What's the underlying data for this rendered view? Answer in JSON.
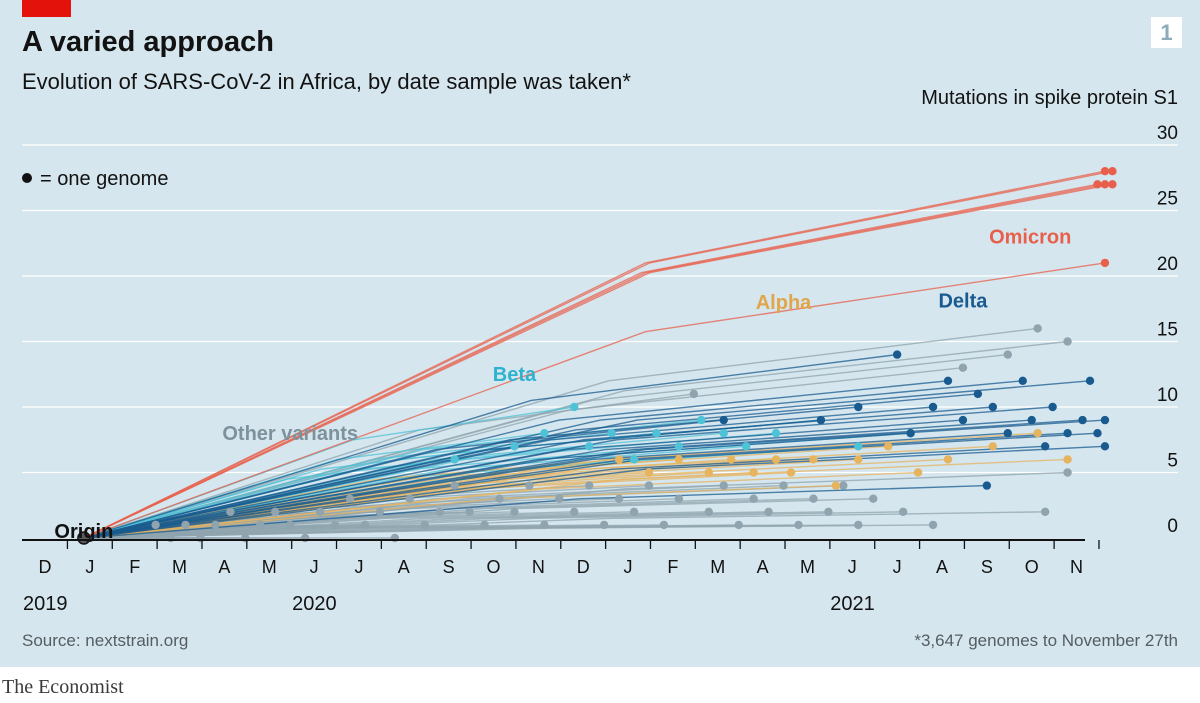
{
  "title": "A varied approach",
  "subtitle": "Evolution of SARS-CoV-2 in Africa, by date sample was taken*",
  "chart_number": "1",
  "legend_text": "= one genome",
  "source": "Source: nextstrain.org",
  "footnote": "*3,647 genomes to November 27th",
  "brand": "The Economist",
  "colors": {
    "other": "#8fa4ae",
    "beta": "#4ec2d7",
    "alpha": "#e6b35f",
    "delta": "#1a5b8f",
    "omicron": "#e8604c",
    "grid": "#ffffff",
    "axis": "#121212"
  },
  "chart_data": {
    "type": "scatter",
    "ylabel": "Mutations in spike protein S1",
    "ylim": [
      0,
      30
    ],
    "y_ticks": [
      "0",
      "5",
      "10",
      "15",
      "20",
      "25",
      "30"
    ],
    "x_range": [
      "2019-12",
      "2021-11"
    ],
    "x_month_ticks": [
      "D",
      "J",
      "F",
      "M",
      "A",
      "M",
      "J",
      "J",
      "A",
      "S",
      "O",
      "N",
      "D",
      "J",
      "F",
      "M",
      "A",
      "M",
      "J",
      "J",
      "A",
      "S",
      "O",
      "N"
    ],
    "x_year_labels": [
      {
        "label": "2019",
        "date": "2019-12"
      },
      {
        "label": "2020",
        "date": "2020-06"
      },
      {
        "label": "2021",
        "date": "2021-06"
      }
    ],
    "grid": true,
    "total_genomes": 3647,
    "annotations": [
      {
        "label": "Origin",
        "date": "2019-12-27",
        "y": 0
      },
      {
        "label": "Other variants",
        "date": "2020-05-15",
        "y": 7.5
      },
      {
        "label": "Beta",
        "date": "2020-10-15",
        "y": 12
      },
      {
        "label": "Alpha",
        "date": "2021-04-15",
        "y": 17.5
      },
      {
        "label": "Delta",
        "date": "2021-08-15",
        "y": 17.6
      },
      {
        "label": "Omicron",
        "date": "2021-09-30",
        "y": 22.5
      }
    ],
    "series": [
      {
        "name": "Origin",
        "points": [
          {
            "date": "2019-12-27",
            "y": 0
          }
        ]
      },
      {
        "name": "Other variants",
        "points": [
          {
            "date": "2020-02-15",
            "y": 1
          },
          {
            "date": "2020-02-25",
            "y": 0
          },
          {
            "date": "2020-03-05",
            "y": 1
          },
          {
            "date": "2020-03-15",
            "y": 0
          },
          {
            "date": "2020-03-25",
            "y": 1
          },
          {
            "date": "2020-04-05",
            "y": 2
          },
          {
            "date": "2020-04-15",
            "y": 0
          },
          {
            "date": "2020-04-25",
            "y": 1
          },
          {
            "date": "2020-05-05",
            "y": 2
          },
          {
            "date": "2020-05-15",
            "y": 1
          },
          {
            "date": "2020-05-25",
            "y": 0
          },
          {
            "date": "2020-06-05",
            "y": 2
          },
          {
            "date": "2020-06-15",
            "y": 1
          },
          {
            "date": "2020-06-25",
            "y": 3
          },
          {
            "date": "2020-07-05",
            "y": 1
          },
          {
            "date": "2020-07-15",
            "y": 2
          },
          {
            "date": "2020-07-25",
            "y": 0
          },
          {
            "date": "2020-08-05",
            "y": 3
          },
          {
            "date": "2020-08-15",
            "y": 1
          },
          {
            "date": "2020-08-25",
            "y": 2
          },
          {
            "date": "2020-09-05",
            "y": 4
          },
          {
            "date": "2020-09-15",
            "y": 2
          },
          {
            "date": "2020-09-25",
            "y": 1
          },
          {
            "date": "2020-10-05",
            "y": 3
          },
          {
            "date": "2020-10-15",
            "y": 2
          },
          {
            "date": "2020-10-25",
            "y": 4
          },
          {
            "date": "2020-11-05",
            "y": 1
          },
          {
            "date": "2020-11-15",
            "y": 3
          },
          {
            "date": "2020-11-25",
            "y": 2
          },
          {
            "date": "2020-12-05",
            "y": 4
          },
          {
            "date": "2020-12-15",
            "y": 1
          },
          {
            "date": "2020-12-25",
            "y": 3
          },
          {
            "date": "2021-01-05",
            "y": 2
          },
          {
            "date": "2021-01-15",
            "y": 4
          },
          {
            "date": "2021-01-25",
            "y": 1
          },
          {
            "date": "2021-02-05",
            "y": 3
          },
          {
            "date": "2021-02-15",
            "y": 11
          },
          {
            "date": "2021-02-25",
            "y": 2
          },
          {
            "date": "2021-03-05",
            "y": 4
          },
          {
            "date": "2021-03-15",
            "y": 1
          },
          {
            "date": "2021-03-25",
            "y": 3
          },
          {
            "date": "2021-04-05",
            "y": 2
          },
          {
            "date": "2021-04-15",
            "y": 4
          },
          {
            "date": "2021-04-25",
            "y": 1
          },
          {
            "date": "2021-05-05",
            "y": 3
          },
          {
            "date": "2021-05-15",
            "y": 2
          },
          {
            "date": "2021-05-25",
            "y": 4
          },
          {
            "date": "2021-06-05",
            "y": 1
          },
          {
            "date": "2021-06-15",
            "y": 3
          },
          {
            "date": "2021-07-05",
            "y": 2
          },
          {
            "date": "2021-07-25",
            "y": 1
          },
          {
            "date": "2021-08-15",
            "y": 13
          },
          {
            "date": "2021-09-15",
            "y": 14
          },
          {
            "date": "2021-10-05",
            "y": 16
          },
          {
            "date": "2021-10-10",
            "y": 2
          },
          {
            "date": "2021-10-25",
            "y": 15
          },
          {
            "date": "2021-10-25",
            "y": 5
          }
        ]
      },
      {
        "name": "Beta",
        "points": [
          {
            "date": "2020-09-05",
            "y": 6
          },
          {
            "date": "2020-10-15",
            "y": 7
          },
          {
            "date": "2020-11-05",
            "y": 8
          },
          {
            "date": "2020-11-25",
            "y": 10
          },
          {
            "date": "2020-12-05",
            "y": 7
          },
          {
            "date": "2020-12-20",
            "y": 8
          },
          {
            "date": "2021-01-05",
            "y": 6
          },
          {
            "date": "2021-01-20",
            "y": 8
          },
          {
            "date": "2021-02-05",
            "y": 7
          },
          {
            "date": "2021-02-20",
            "y": 9
          },
          {
            "date": "2021-03-05",
            "y": 8
          },
          {
            "date": "2021-03-20",
            "y": 7
          },
          {
            "date": "2021-04-10",
            "y": 8
          },
          {
            "date": "2021-05-10",
            "y": 9
          },
          {
            "date": "2021-06-05",
            "y": 7
          },
          {
            "date": "2021-07-10",
            "y": 8
          }
        ]
      },
      {
        "name": "Alpha",
        "points": [
          {
            "date": "2020-12-25",
            "y": 6
          },
          {
            "date": "2021-01-15",
            "y": 5
          },
          {
            "date": "2021-02-05",
            "y": 6
          },
          {
            "date": "2021-02-25",
            "y": 5
          },
          {
            "date": "2021-03-10",
            "y": 6
          },
          {
            "date": "2021-03-25",
            "y": 5
          },
          {
            "date": "2021-04-10",
            "y": 6
          },
          {
            "date": "2021-04-20",
            "y": 5
          },
          {
            "date": "2021-05-05",
            "y": 6
          },
          {
            "date": "2021-05-20",
            "y": 4
          },
          {
            "date": "2021-06-05",
            "y": 6
          },
          {
            "date": "2021-06-25",
            "y": 7
          },
          {
            "date": "2021-07-15",
            "y": 5
          },
          {
            "date": "2021-08-05",
            "y": 6
          },
          {
            "date": "2021-09-05",
            "y": 7
          },
          {
            "date": "2021-10-05",
            "y": 8
          },
          {
            "date": "2021-10-25",
            "y": 6
          }
        ]
      },
      {
        "name": "Delta",
        "points": [
          {
            "date": "2021-03-05",
            "y": 9
          },
          {
            "date": "2021-05-10",
            "y": 9
          },
          {
            "date": "2021-06-05",
            "y": 10
          },
          {
            "date": "2021-07-01",
            "y": 14
          },
          {
            "date": "2021-07-10",
            "y": 8
          },
          {
            "date": "2021-07-25",
            "y": 10
          },
          {
            "date": "2021-08-05",
            "y": 12
          },
          {
            "date": "2021-08-15",
            "y": 9
          },
          {
            "date": "2021-08-25",
            "y": 11
          },
          {
            "date": "2021-09-01",
            "y": 4
          },
          {
            "date": "2021-09-05",
            "y": 10
          },
          {
            "date": "2021-09-15",
            "y": 8
          },
          {
            "date": "2021-09-25",
            "y": 12
          },
          {
            "date": "2021-10-01",
            "y": 9
          },
          {
            "date": "2021-10-10",
            "y": 7
          },
          {
            "date": "2021-10-15",
            "y": 10
          },
          {
            "date": "2021-10-25",
            "y": 8
          },
          {
            "date": "2021-11-05",
            "y": 9
          },
          {
            "date": "2021-11-10",
            "y": 12
          },
          {
            "date": "2021-11-15",
            "y": 8
          },
          {
            "date": "2021-11-20",
            "y": 9
          },
          {
            "date": "2021-11-20",
            "y": 7
          }
        ]
      },
      {
        "name": "Omicron",
        "points": [
          {
            "date": "2021-11-15",
            "y": 27
          },
          {
            "date": "2021-11-20",
            "y": 27
          },
          {
            "date": "2021-11-25",
            "y": 27
          },
          {
            "date": "2021-11-20",
            "y": 28
          },
          {
            "date": "2021-11-25",
            "y": 28
          },
          {
            "date": "2021-11-20",
            "y": 21
          }
        ]
      }
    ]
  }
}
